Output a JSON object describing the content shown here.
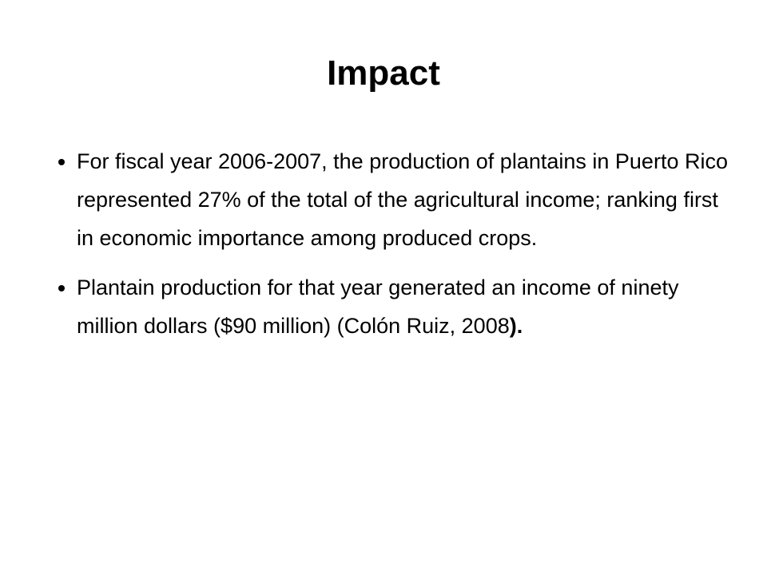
{
  "title": "Impact",
  "bullets": [
    [
      "For fiscal year 2006-2007, the production of plantains in Puerto Rico represented 27% of the total of the agricultural income; ranking first in economic importance among produced crops."
    ],
    [
      "Plantain production for that year generated an income of ninety million dollars ($90 million) (Colón Ruiz, 2008",
      ")."
    ]
  ]
}
